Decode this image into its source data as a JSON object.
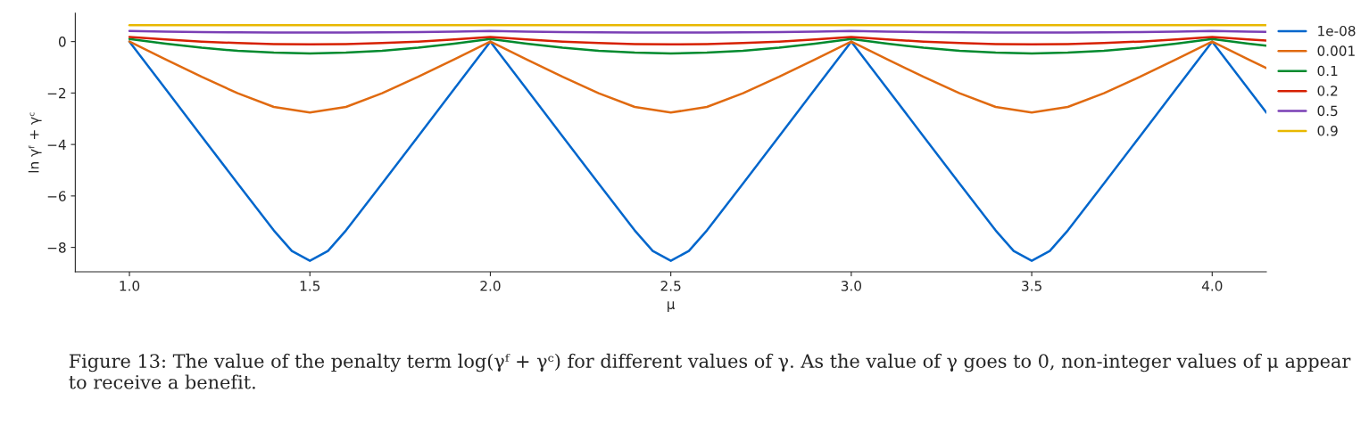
{
  "chart_data": {
    "type": "line",
    "xlabel": "μ",
    "ylabel": "ln γᶠ + γᶜ",
    "x": [
      1.0,
      1.1,
      1.2,
      1.3,
      1.4,
      1.5,
      1.6,
      1.7,
      1.8,
      1.9,
      2.0,
      2.1,
      2.2,
      2.3,
      2.4,
      2.5,
      2.6,
      2.7,
      2.8,
      2.9,
      3.0,
      3.1,
      3.2,
      3.3,
      3.4,
      3.5,
      3.6,
      3.7,
      3.8,
      3.9,
      4.0,
      4.1,
      4.15
    ],
    "series": [
      {
        "name": "1e-08",
        "color": "#0066cc",
        "x": [
          1.0,
          1.1,
          1.2,
          1.3,
          1.4,
          1.45,
          1.5,
          1.55,
          1.6,
          1.7,
          1.8,
          1.9,
          2.0,
          2.1,
          2.2,
          2.3,
          2.4,
          2.45,
          2.5,
          2.55,
          2.6,
          2.7,
          2.8,
          2.9,
          3.0,
          3.1,
          3.2,
          3.3,
          3.4,
          3.45,
          3.5,
          3.55,
          3.6,
          3.7,
          3.8,
          3.9,
          4.0,
          4.1,
          4.15
        ],
        "values": [
          0,
          -1.84,
          -3.68,
          -5.52,
          -7.34,
          -8.14,
          -8.52,
          -8.14,
          -7.34,
          -5.52,
          -3.68,
          -1.84,
          0,
          -1.84,
          -3.68,
          -5.52,
          -7.34,
          -8.14,
          -8.52,
          -8.14,
          -7.34,
          -5.52,
          -3.68,
          -1.84,
          0,
          -1.84,
          -3.68,
          -5.52,
          -7.34,
          -8.14,
          -8.52,
          -8.14,
          -7.34,
          -5.52,
          -3.68,
          -1.84,
          0,
          -1.84,
          -2.76
        ]
      },
      {
        "name": "0.001",
        "color": "#e06a10",
        "values": [
          0.0,
          -0.69,
          -1.37,
          -2.01,
          -2.54,
          -2.76,
          -2.54,
          -2.01,
          -1.37,
          -0.69,
          0.0,
          -0.69,
          -1.37,
          -2.01,
          -2.54,
          -2.76,
          -2.54,
          -2.01,
          -1.37,
          -0.69,
          0.0,
          -0.69,
          -1.37,
          -2.01,
          -2.54,
          -2.76,
          -2.54,
          -2.01,
          -1.37,
          -0.69,
          0.0,
          -0.69,
          -1.03
        ]
      },
      {
        "name": "0.1",
        "color": "#008a2e",
        "values": [
          0.1,
          -0.08,
          -0.24,
          -0.36,
          -0.43,
          -0.46,
          -0.43,
          -0.36,
          -0.24,
          -0.08,
          0.1,
          -0.08,
          -0.24,
          -0.36,
          -0.43,
          -0.46,
          -0.43,
          -0.36,
          -0.24,
          -0.08,
          0.1,
          -0.08,
          -0.24,
          -0.36,
          -0.43,
          -0.46,
          -0.43,
          -0.36,
          -0.24,
          -0.08,
          0.1,
          -0.08,
          -0.16
        ]
      },
      {
        "name": "0.2",
        "color": "#d62000",
        "values": [
          0.18,
          0.08,
          0.0,
          -0.06,
          -0.1,
          -0.11,
          -0.1,
          -0.06,
          0.0,
          0.08,
          0.18,
          0.08,
          0.0,
          -0.06,
          -0.1,
          -0.11,
          -0.1,
          -0.06,
          0.0,
          0.08,
          0.18,
          0.08,
          0.0,
          -0.06,
          -0.1,
          -0.11,
          -0.1,
          -0.06,
          0.0,
          0.08,
          0.18,
          0.08,
          0.04
        ]
      },
      {
        "name": "0.5",
        "color": "#7a3fb5",
        "values": [
          0.41,
          0.39,
          0.37,
          0.36,
          0.35,
          0.35,
          0.35,
          0.36,
          0.37,
          0.39,
          0.41,
          0.39,
          0.37,
          0.36,
          0.35,
          0.35,
          0.35,
          0.36,
          0.37,
          0.39,
          0.41,
          0.39,
          0.37,
          0.36,
          0.35,
          0.35,
          0.35,
          0.36,
          0.37,
          0.39,
          0.41,
          0.39,
          0.38
        ]
      },
      {
        "name": "0.9",
        "color": "#e8b800",
        "x": [
          1.0,
          1.5,
          2.0,
          2.5,
          3.0,
          3.5,
          4.0,
          4.15
        ],
        "values": [
          0.64,
          0.64,
          0.64,
          0.64,
          0.64,
          0.64,
          0.64,
          0.64
        ]
      }
    ],
    "xlim": [
      0.85,
      4.15
    ],
    "ylim": [
      -8.95,
      1.1
    ],
    "xticks": [
      {
        "value": 1.0,
        "label": "1.0"
      },
      {
        "value": 1.5,
        "label": "1.5"
      },
      {
        "value": 2.0,
        "label": "2.0"
      },
      {
        "value": 2.5,
        "label": "2.5"
      },
      {
        "value": 3.0,
        "label": "3.0"
      },
      {
        "value": 3.5,
        "label": "3.5"
      },
      {
        "value": 4.0,
        "label": "4.0"
      }
    ],
    "yticks": [
      {
        "value": -8,
        "label": "−8"
      },
      {
        "value": -6,
        "label": "−6"
      },
      {
        "value": -4,
        "label": "−4"
      },
      {
        "value": -2,
        "label": "−2"
      },
      0
    ],
    "grid": false,
    "legend": "right",
    "marker": "none",
    "line_style": "solid",
    "annotations": [
      "Figure 13: The value of the penalty term log(γᶠ + γᶜ) for different values of γ. As the value of γ goes to 0, non-integer values of μ appear to receive a benefit."
    ]
  }
}
